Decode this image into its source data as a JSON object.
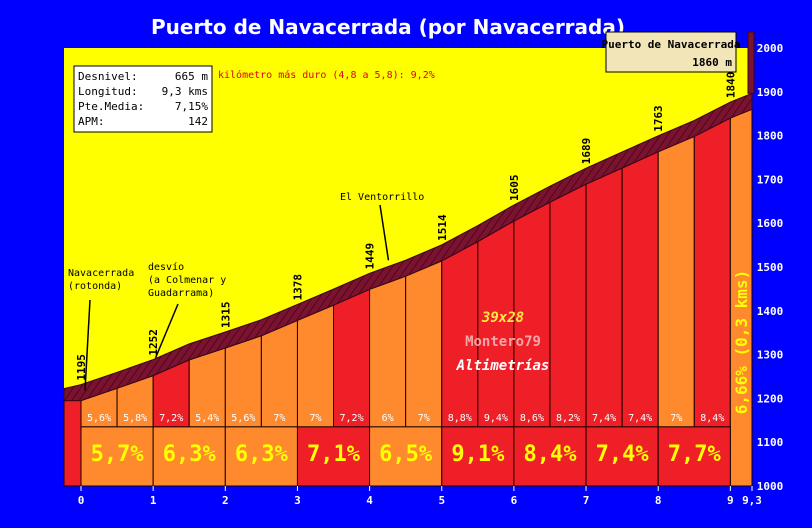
{
  "chart_data": {
    "type": "area",
    "title": "Puerto de Navacerrada (por Navacerrada)",
    "xlim": [
      0,
      9.3
    ],
    "ylim": [
      1000,
      2000
    ],
    "x_ticks": [
      "0",
      "1",
      "2",
      "3",
      "4",
      "5",
      "6",
      "7",
      "8",
      "9",
      "9,3"
    ],
    "y_ticks": [
      "1000",
      "1100",
      "1200",
      "1300",
      "1400",
      "1500",
      "1600",
      "1700",
      "1800",
      "1900",
      "2000"
    ],
    "profile": [
      {
        "x": 0,
        "y": 1195
      },
      {
        "x": 0.5,
        "y": 1223
      },
      {
        "x": 1,
        "y": 1252
      },
      {
        "x": 1.5,
        "y": 1288
      },
      {
        "x": 2,
        "y": 1315
      },
      {
        "x": 2.5,
        "y": 1343
      },
      {
        "x": 3,
        "y": 1378
      },
      {
        "x": 3.5,
        "y": 1413
      },
      {
        "x": 4,
        "y": 1449
      },
      {
        "x": 4.5,
        "y": 1479
      },
      {
        "x": 5,
        "y": 1514
      },
      {
        "x": 5.5,
        "y": 1558
      },
      {
        "x": 6,
        "y": 1605
      },
      {
        "x": 6.5,
        "y": 1648
      },
      {
        "x": 7,
        "y": 1689
      },
      {
        "x": 7.5,
        "y": 1726
      },
      {
        "x": 8,
        "y": 1763
      },
      {
        "x": 8.5,
        "y": 1798
      },
      {
        "x": 9,
        "y": 1840
      },
      {
        "x": 9.3,
        "y": 1860
      }
    ],
    "elevation_labels": [
      {
        "x": 0,
        "label": "1195"
      },
      {
        "x": 1,
        "label": "1252"
      },
      {
        "x": 2,
        "label": "1315"
      },
      {
        "x": 3,
        "label": "1378"
      },
      {
        "x": 4,
        "label": "1449"
      },
      {
        "x": 5,
        "label": "1514"
      },
      {
        "x": 6,
        "label": "1605"
      },
      {
        "x": 7,
        "label": "1689"
      },
      {
        "x": 8,
        "label": "1763"
      },
      {
        "x": 9,
        "label": "1840"
      }
    ],
    "half_km_gradients": [
      {
        "x0": 0,
        "x1": 0.5,
        "value": 5.6,
        "label": "5,6%"
      },
      {
        "x0": 0.5,
        "x1": 1,
        "value": 5.8,
        "label": "5,8%"
      },
      {
        "x0": 1,
        "x1": 1.5,
        "value": 7.2,
        "label": "7,2%"
      },
      {
        "x0": 1.5,
        "x1": 2,
        "value": 5.4,
        "label": "5,4%"
      },
      {
        "x0": 2,
        "x1": 2.5,
        "value": 5.6,
        "label": "5,6%"
      },
      {
        "x0": 2.5,
        "x1": 3,
        "value": 7,
        "label": "7%"
      },
      {
        "x0": 3,
        "x1": 3.5,
        "value": 7,
        "label": "7%"
      },
      {
        "x0": 3.5,
        "x1": 4,
        "value": 7.2,
        "label": "7,2%"
      },
      {
        "x0": 4,
        "x1": 4.5,
        "value": 6,
        "label": "6%"
      },
      {
        "x0": 4.5,
        "x1": 5,
        "value": 7,
        "label": "7%"
      },
      {
        "x0": 5,
        "x1": 5.5,
        "value": 8.8,
        "label": "8,8%"
      },
      {
        "x0": 5.5,
        "x1": 6,
        "value": 9.4,
        "label": "9,4%"
      },
      {
        "x0": 6,
        "x1": 6.5,
        "value": 8.6,
        "label": "8,6%"
      },
      {
        "x0": 6.5,
        "x1": 7,
        "value": 8.2,
        "label": "8,2%"
      },
      {
        "x0": 7,
        "x1": 7.5,
        "value": 7.4,
        "label": "7,4%"
      },
      {
        "x0": 7.5,
        "x1": 8,
        "value": 7.4,
        "label": "7,4%"
      },
      {
        "x0": 8,
        "x1": 8.5,
        "value": 7,
        "label": "7%"
      },
      {
        "x0": 8.5,
        "x1": 9,
        "value": 8.4,
        "label": "8,4%"
      }
    ],
    "km_gradients": [
      {
        "x0": 0,
        "x1": 1,
        "value": 5.7,
        "label": "5,7%"
      },
      {
        "x0": 1,
        "x1": 2,
        "value": 6.3,
        "label": "6,3%"
      },
      {
        "x0": 2,
        "x1": 3,
        "value": 6.3,
        "label": "6,3%"
      },
      {
        "x0": 3,
        "x1": 4,
        "value": 7.1,
        "label": "7,1%"
      },
      {
        "x0": 4,
        "x1": 5,
        "value": 6.5,
        "label": "6,5%"
      },
      {
        "x0": 5,
        "x1": 6,
        "value": 9.1,
        "label": "9,1%"
      },
      {
        "x0": 6,
        "x1": 7,
        "value": 8.4,
        "label": "8,4%"
      },
      {
        "x0": 7,
        "x1": 8,
        "value": 7.4,
        "label": "7,4%"
      },
      {
        "x0": 8,
        "x1": 9,
        "value": 7.7,
        "label": "7,7%"
      }
    ],
    "last_segment": {
      "x0": 9,
      "x1": 9.3,
      "value": 6.66,
      "label": "6,66% (0,3 kms)"
    },
    "color_scale": [
      {
        "max": 7,
        "color": "#ff8a2e"
      },
      {
        "max": 99,
        "color": "#ef1f28"
      }
    ],
    "colors": {
      "sky": "#ffff00",
      "background": "#0000ff",
      "road": "#7a1230",
      "bottom_band": "#ff8a2e",
      "grid": "#1a0000"
    },
    "annotations": [
      {
        "x": 0,
        "y": 1195,
        "text": [
          "Navacerrada",
          "(rotonda)"
        ]
      },
      {
        "x": 1.2,
        "y": 1270,
        "text": [
          "desvío",
          "(a Colmenar y",
          "Guadarrama)"
        ]
      },
      {
        "x": 4.4,
        "y": 1488,
        "text": [
          "El Ventorrillo"
        ]
      }
    ],
    "stats": [
      {
        "label": "Desnivel:",
        "value": "665 m"
      },
      {
        "label": "Longitud:",
        "value": "9,3 kms"
      },
      {
        "label": "Pte.Media:",
        "value": "7,15%"
      },
      {
        "label": "APM:",
        "value": "142"
      }
    ],
    "hardest_km": "kilómetro más duro (4,8 a 5,8): 9,2%",
    "summit": {
      "name": "Puerto de Navacerrada",
      "elevation": "1860 m"
    },
    "watermark": {
      "line1": "39x28",
      "line2": "Montero79",
      "line3": "Altimetrías"
    }
  }
}
